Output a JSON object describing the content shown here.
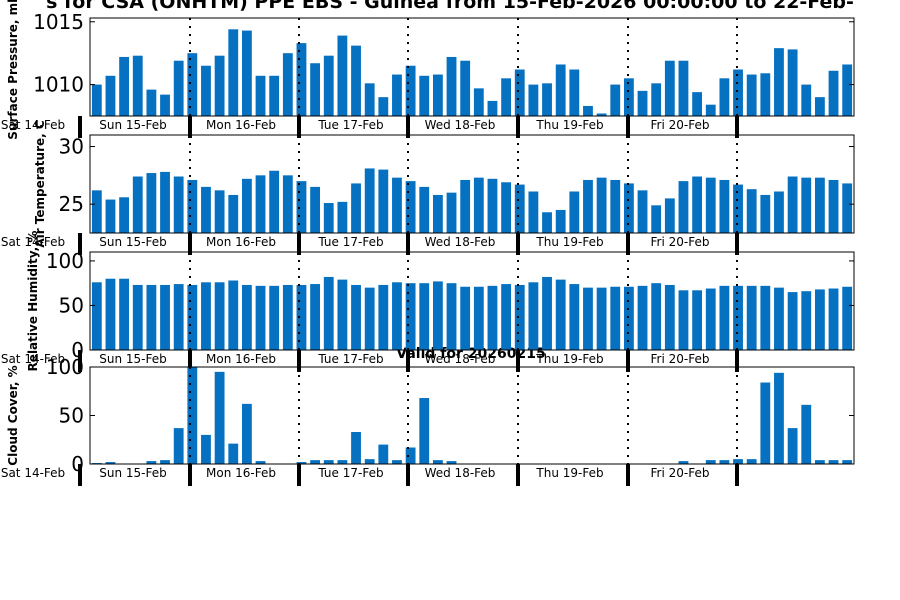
{
  "title": "s for CSA (ONHTM) PPE EBS - Guinea from 15-Feb-2026 00:00:00 to 22-Feb-",
  "subtitle": "Valid for 20260215",
  "colors": {
    "bar": "#0571c0"
  },
  "day_labels": [
    "Sat 14-Feb",
    "Sun 15-Feb",
    "Mon 16-Feb",
    "Tue 17-Feb",
    "Wed 18-Feb",
    "Thu 19-Feb",
    "Fri 20-Feb"
  ],
  "chart_data": [
    {
      "type": "bar",
      "ylabel": "Surface Pressure, mb",
      "ylim": [
        1007.5,
        1015.3
      ],
      "yticks": [
        1010,
        1015
      ],
      "values": [
        1010.0,
        1010.7,
        1012.2,
        1012.3,
        1009.6,
        1009.2,
        1011.9,
        1012.5,
        1011.5,
        1012.3,
        1014.4,
        1014.3,
        1010.7,
        1010.7,
        1012.5,
        1013.3,
        1011.7,
        1012.3,
        1013.9,
        1013.1,
        1010.1,
        1009.0,
        1010.8,
        1011.5,
        1010.7,
        1010.8,
        1012.2,
        1011.9,
        1009.7,
        1008.7,
        1010.5,
        1011.2,
        1010.0,
        1010.1,
        1011.6,
        1011.2,
        1008.3,
        1007.7,
        1010.0,
        1010.5,
        1009.5,
        1010.1,
        1011.9,
        1011.9,
        1009.4,
        1008.4,
        1010.5,
        1011.2,
        1010.8,
        1010.9,
        1012.9,
        1012.8,
        1010.0,
        1009.0,
        1011.1,
        1011.6
      ]
    },
    {
      "type": "bar",
      "ylabel": "Air Temperature, C",
      "ylim": [
        22.5,
        31.0
      ],
      "yticks": [
        25,
        30
      ],
      "values": [
        26.2,
        25.4,
        25.6,
        27.4,
        27.7,
        27.8,
        27.4,
        27.1,
        26.5,
        26.2,
        25.8,
        27.2,
        27.5,
        27.9,
        27.5,
        27.0,
        26.5,
        25.1,
        25.2,
        26.8,
        28.1,
        28.0,
        27.3,
        27.0,
        26.5,
        25.8,
        26.0,
        27.1,
        27.3,
        27.2,
        26.9,
        26.7,
        26.1,
        24.3,
        24.5,
        26.1,
        27.1,
        27.3,
        27.1,
        26.8,
        26.2,
        24.9,
        25.5,
        27.0,
        27.4,
        27.3,
        27.1,
        26.7,
        26.3,
        25.8,
        26.1,
        27.4,
        27.3,
        27.3,
        27.1,
        26.8
      ]
    },
    {
      "type": "bar",
      "ylabel": "Relative Humidity, %",
      "ylim": [
        0,
        110
      ],
      "yticks": [
        0,
        50,
        100
      ],
      "values": [
        76,
        80,
        80,
        73,
        73,
        73,
        74,
        73,
        76,
        76,
        78,
        73,
        72,
        72,
        73,
        73,
        74,
        82,
        79,
        73,
        70,
        73,
        76,
        75,
        75,
        77,
        75,
        71,
        71,
        72,
        74,
        73,
        76,
        82,
        79,
        74,
        70,
        70,
        71,
        71,
        72,
        75,
        73,
        67,
        67,
        69,
        72,
        72,
        72,
        72,
        70,
        65,
        66,
        68,
        69,
        71
      ]
    },
    {
      "type": "bar",
      "ylabel": "Cloud Cover, %",
      "ylim": [
        0,
        100
      ],
      "yticks": [
        0,
        50,
        100
      ],
      "values": [
        1,
        2,
        0,
        0,
        3,
        4,
        37,
        100,
        30,
        95,
        21,
        62,
        3,
        0,
        0,
        2,
        4,
        4,
        4,
        33,
        5,
        20,
        4,
        17,
        68,
        4,
        3,
        0,
        0,
        0,
        0,
        0,
        0,
        0,
        0,
        0,
        0,
        0,
        0,
        0,
        0,
        0,
        0,
        3,
        0,
        4,
        4,
        5,
        5,
        84,
        94,
        37,
        61,
        4,
        4,
        4
      ]
    }
  ]
}
